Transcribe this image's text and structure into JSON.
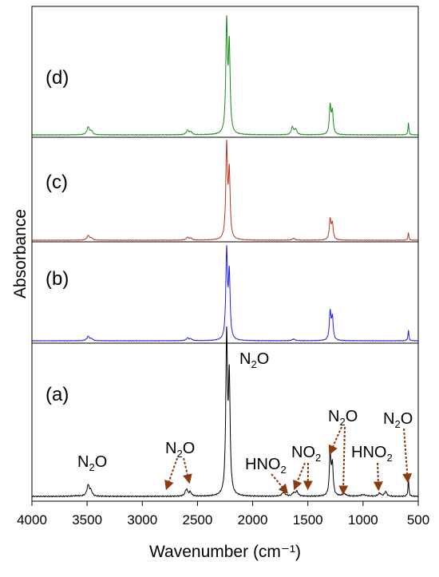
{
  "chart_data": {
    "type": "line",
    "title": "",
    "xlabel": "Wavenumber (cm⁻¹)",
    "ylabel": "Absorbance",
    "xlim": [
      4000,
      500
    ],
    "x_reversed": true,
    "xticks": [
      4000,
      3500,
      3000,
      2500,
      2000,
      1500,
      1000,
      500
    ],
    "yticks_shown": false,
    "grid": false,
    "stacked_offset": true,
    "colors": {
      "a": "#000000",
      "b": "#2020e0",
      "c": "#b23a1e",
      "d": "#1a8a1a",
      "arrow": "#8b3a0e"
    },
    "series": [
      {
        "name": "(a)",
        "peaks": [
          {
            "x": 3600,
            "y": 0.003,
            "w": 40
          },
          {
            "x": 3490,
            "y": 0.07,
            "w": 14
          },
          {
            "x": 3465,
            "y": 0.03,
            "w": 12
          },
          {
            "x": 2600,
            "y": 0.045,
            "w": 14
          },
          {
            "x": 2565,
            "y": 0.025,
            "w": 12
          },
          {
            "x": 2236,
            "y": 1.0,
            "w": 9
          },
          {
            "x": 2212,
            "y": 0.72,
            "w": 9
          },
          {
            "x": 1720,
            "y": 0.025,
            "w": 18
          },
          {
            "x": 1630,
            "y": 0.02,
            "w": 14
          },
          {
            "x": 1600,
            "y": 0.03,
            "w": 14
          },
          {
            "x": 1298,
            "y": 0.26,
            "w": 9
          },
          {
            "x": 1278,
            "y": 0.19,
            "w": 9
          },
          {
            "x": 1170,
            "y": 0.015,
            "w": 20
          },
          {
            "x": 1000,
            "y": 0.01,
            "w": 30
          },
          {
            "x": 850,
            "y": 0.02,
            "w": 15
          },
          {
            "x": 795,
            "y": 0.03,
            "w": 12
          },
          {
            "x": 589,
            "y": 0.11,
            "w": 5
          }
        ]
      },
      {
        "name": "(b)",
        "peaks": [
          {
            "x": 3490,
            "y": 0.05,
            "w": 14
          },
          {
            "x": 3460,
            "y": 0.02,
            "w": 12
          },
          {
            "x": 2590,
            "y": 0.03,
            "w": 14
          },
          {
            "x": 2560,
            "y": 0.02,
            "w": 12
          },
          {
            "x": 2236,
            "y": 1.0,
            "w": 9
          },
          {
            "x": 2212,
            "y": 0.73,
            "w": 9
          },
          {
            "x": 1630,
            "y": 0.02,
            "w": 14
          },
          {
            "x": 1298,
            "y": 0.32,
            "w": 9
          },
          {
            "x": 1278,
            "y": 0.25,
            "w": 9
          },
          {
            "x": 589,
            "y": 0.12,
            "w": 5
          }
        ]
      },
      {
        "name": "(c)",
        "peaks": [
          {
            "x": 3490,
            "y": 0.05,
            "w": 14
          },
          {
            "x": 3460,
            "y": 0.02,
            "w": 12
          },
          {
            "x": 2590,
            "y": 0.03,
            "w": 14
          },
          {
            "x": 2560,
            "y": 0.02,
            "w": 12
          },
          {
            "x": 2236,
            "y": 1.0,
            "w": 9
          },
          {
            "x": 2212,
            "y": 0.7,
            "w": 9
          },
          {
            "x": 1630,
            "y": 0.02,
            "w": 14
          },
          {
            "x": 1298,
            "y": 0.22,
            "w": 9
          },
          {
            "x": 1278,
            "y": 0.17,
            "w": 9
          },
          {
            "x": 589,
            "y": 0.08,
            "w": 5
          }
        ]
      },
      {
        "name": "(d)",
        "peaks": [
          {
            "x": 3490,
            "y": 0.07,
            "w": 14
          },
          {
            "x": 3460,
            "y": 0.03,
            "w": 12
          },
          {
            "x": 2590,
            "y": 0.04,
            "w": 14
          },
          {
            "x": 2560,
            "y": 0.025,
            "w": 12
          },
          {
            "x": 2236,
            "y": 1.0,
            "w": 9
          },
          {
            "x": 2212,
            "y": 0.78,
            "w": 9
          },
          {
            "x": 1640,
            "y": 0.07,
            "w": 12
          },
          {
            "x": 1610,
            "y": 0.05,
            "w": 12
          },
          {
            "x": 1298,
            "y": 0.26,
            "w": 9
          },
          {
            "x": 1278,
            "y": 0.2,
            "w": 9
          },
          {
            "x": 589,
            "y": 0.11,
            "w": 5
          }
        ]
      }
    ],
    "annotations": [
      {
        "text_main": "N",
        "sub": "2",
        "text_tail": "O",
        "at": "a-2236-peak-label",
        "arrows": []
      },
      {
        "text_main": "N",
        "sub": "2",
        "text_tail": "O",
        "at": "a-3490",
        "arrows": []
      },
      {
        "text_main": "N",
        "sub": "2",
        "text_tail": "O",
        "at": "a-2600",
        "arrows": [
          2780,
          2575
        ]
      },
      {
        "text_main": "HNO",
        "sub": "2",
        "text_tail": "",
        "at": "a-1700",
        "arrows": [
          1690
        ]
      },
      {
        "text_main": "NO",
        "sub": "2",
        "text_tail": "",
        "at": "a-1560",
        "arrows": [
          1620,
          1500
        ]
      },
      {
        "text_main": "N",
        "sub": "2",
        "text_tail": "O",
        "at": "a-1270",
        "arrows": [
          1300,
          1180
        ]
      },
      {
        "text_main": "HNO",
        "sub": "2",
        "text_tail": "",
        "at": "a-850",
        "arrows": [
          860
        ]
      },
      {
        "text_main": "N",
        "sub": "2",
        "text_tail": "O",
        "at": "a-590",
        "arrows": [
          595
        ]
      }
    ]
  }
}
